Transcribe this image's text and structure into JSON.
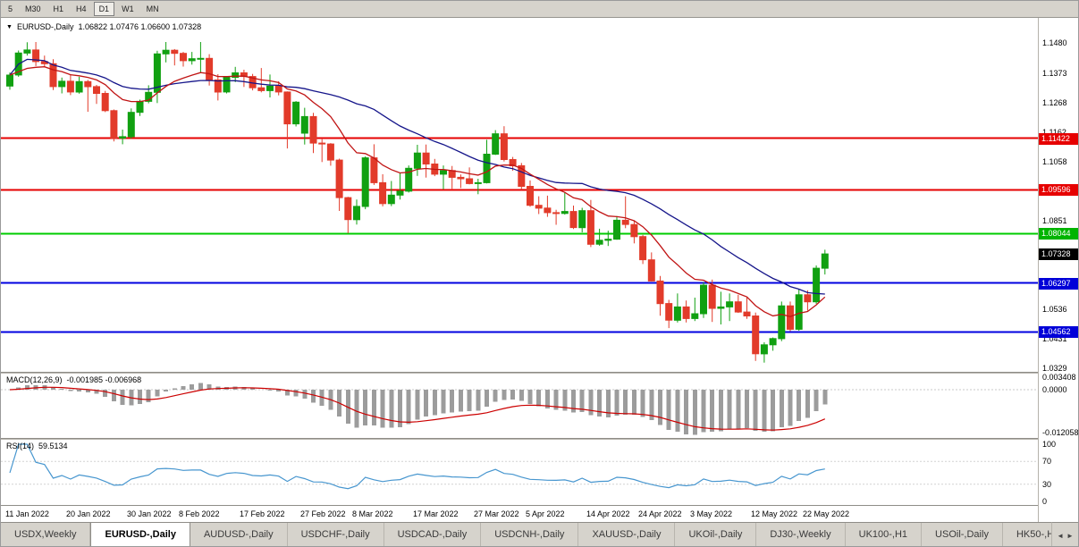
{
  "theme": {
    "up_color": "#11a011",
    "down_color": "#e23b2a",
    "ma_fast_color": "#c01414",
    "ma_slow_color": "#15158a",
    "macd_hist_color": "#9c9c9c",
    "macd_signal_color": "#cc0000",
    "rsi_color": "#4796cf"
  },
  "toolbar": {
    "timeframes": [
      {
        "label": "5",
        "active": false
      },
      {
        "label": "M30",
        "active": false
      },
      {
        "label": "H1",
        "active": false
      },
      {
        "label": "H4",
        "active": false
      },
      {
        "label": "D1",
        "active": true
      },
      {
        "label": "W1",
        "active": false
      },
      {
        "label": "MN",
        "active": false
      }
    ]
  },
  "chart_header": {
    "dropdown_icon": "▼",
    "symbol_title": "EURUSD-,Daily",
    "ohlc_text": "1.06822 1.07476 1.06600 1.07328"
  },
  "price_axis": {
    "labels": [
      {
        "value": 1.148,
        "text": "1.1480"
      },
      {
        "value": 1.1373,
        "text": "1.1373"
      },
      {
        "value": 1.1268,
        "text": "1.1268"
      },
      {
        "value": 1.1162,
        "text": "1.1162"
      },
      {
        "value": 1.1058,
        "text": "1.1058"
      },
      {
        "value": 1.0851,
        "text": "1.0851"
      },
      {
        "value": 1.0536,
        "text": "1.0536"
      },
      {
        "value": 1.0431,
        "text": "1.0431"
      },
      {
        "value": 1.0329,
        "text": "1.0329"
      }
    ],
    "badges": [
      {
        "value": 1.11422,
        "text": "1.11422",
        "bg": "#e60000"
      },
      {
        "value": 1.09596,
        "text": "1.09596",
        "bg": "#e60000"
      },
      {
        "value": 1.08044,
        "text": "1.08044",
        "bg": "#00b400"
      },
      {
        "value": 1.07328,
        "text": "1.07328",
        "bg": "#000000"
      },
      {
        "value": 1.06297,
        "text": "1.06297",
        "bg": "#0000d8"
      },
      {
        "value": 1.04562,
        "text": "1.04562",
        "bg": "#0000d8"
      }
    ]
  },
  "hlines": [
    {
      "value": 1.11422,
      "color": "#e60000"
    },
    {
      "value": 1.09596,
      "color": "#e60000"
    },
    {
      "value": 1.08044,
      "color": "#00cc00"
    },
    {
      "value": 1.06297,
      "color": "#0000e0"
    },
    {
      "value": 1.04562,
      "color": "#0000e0"
    }
  ],
  "macd_panel": {
    "name": "MACD(12,26,9)",
    "values": "-0.001985 -0.006968",
    "axis": [
      {
        "text": "0.003408",
        "value": 0.003408
      },
      {
        "text": "0.0000",
        "value": 0
      },
      {
        "text": "-0.012058",
        "value": -0.012058
      }
    ]
  },
  "rsi_panel": {
    "name": "RSI(14)",
    "value": "59.5134",
    "axis": [
      {
        "text": "100",
        "value": 100
      },
      {
        "text": "70",
        "value": 70
      },
      {
        "text": "30",
        "value": 30
      },
      {
        "text": "0",
        "value": 0
      }
    ]
  },
  "date_axis": [
    {
      "text": "11 Jan 2022",
      "i": 0
    },
    {
      "text": "20 Jan 2022",
      "i": 7
    },
    {
      "text": "30 Jan 2022",
      "i": 14
    },
    {
      "text": "8 Feb 2022",
      "i": 20
    },
    {
      "text": "17 Feb 2022",
      "i": 27
    },
    {
      "text": "27 Feb 2022",
      "i": 34
    },
    {
      "text": "8 Mar 2022",
      "i": 40
    },
    {
      "text": "17 Mar 2022",
      "i": 47
    },
    {
      "text": "27 Mar 2022",
      "i": 54
    },
    {
      "text": "5 Apr 2022",
      "i": 60
    },
    {
      "text": "14 Apr 2022",
      "i": 67
    },
    {
      "text": "24 Apr 2022",
      "i": 73
    },
    {
      "text": "3 May 2022",
      "i": 79
    },
    {
      "text": "12 May 2022",
      "i": 86
    },
    {
      "text": "22 May 2022",
      "i": 92
    }
  ],
  "tabs": [
    {
      "label": "USDX,Weekly",
      "active": false
    },
    {
      "label": "EURUSD-,Daily",
      "active": true
    },
    {
      "label": "AUDUSD-,Daily",
      "active": false
    },
    {
      "label": "USDCHF-,Daily",
      "active": false
    },
    {
      "label": "USDCAD-,Daily",
      "active": false
    },
    {
      "label": "USDCNH-,Daily",
      "active": false
    },
    {
      "label": "XAUUSD-,Daily",
      "active": false
    },
    {
      "label": "UKOil-,Daily",
      "active": false
    },
    {
      "label": "DJ30-,Weekly",
      "active": false
    },
    {
      "label": "UK100-,H1",
      "active": false
    },
    {
      "label": "USOil-,Daily",
      "active": false
    },
    {
      "label": "HK50-,H1",
      "active": false
    }
  ],
  "tab_scroll": {
    "left": "◄",
    "right": "►"
  },
  "chart_data": {
    "type": "candlestick",
    "symbol": "EURUSD-",
    "timeframe": "Daily",
    "last_ohlc": {
      "open": 1.06822,
      "high": 1.07476,
      "low": 1.066,
      "close": 1.07328
    },
    "price_axis_range": [
      1.0329,
      1.148
    ],
    "horizontal_levels": [
      1.11422,
      1.09596,
      1.08044,
      1.06297,
      1.04562
    ],
    "current_price": 1.07328,
    "overlays": [
      {
        "name": "ma-fast",
        "type": "ema",
        "period": 12
      },
      {
        "name": "ma-slow",
        "type": "sma",
        "period": 26
      }
    ],
    "indicators": [
      {
        "name": "MACD",
        "params": [
          12,
          26,
          9
        ],
        "last_values": [
          -0.001985,
          -0.006968
        ],
        "axis_range": [
          -0.012058,
          0.003408
        ]
      },
      {
        "name": "RSI",
        "params": [
          14
        ],
        "last_value": 59.5134,
        "axis_range": [
          0,
          100
        ],
        "levels": [
          70,
          30
        ]
      }
    ],
    "candles": [
      [
        1.1327,
        1.1375,
        1.1314,
        1.1366
      ],
      [
        1.1366,
        1.1453,
        1.136,
        1.1444
      ],
      [
        1.1444,
        1.1482,
        1.1435,
        1.1455
      ],
      [
        1.1455,
        1.1483,
        1.1398,
        1.1414
      ],
      [
        1.1414,
        1.1435,
        1.1395,
        1.1406
      ],
      [
        1.1406,
        1.1422,
        1.1313,
        1.1325
      ],
      [
        1.1325,
        1.1357,
        1.1301,
        1.1344
      ],
      [
        1.1344,
        1.1369,
        1.1295,
        1.1306
      ],
      [
        1.1306,
        1.136,
        1.13,
        1.1343
      ],
      [
        1.1343,
        1.1349,
        1.1236,
        1.1325
      ],
      [
        1.1325,
        1.1331,
        1.1264,
        1.1301
      ],
      [
        1.1301,
        1.131,
        1.1235,
        1.124
      ],
      [
        1.124,
        1.1244,
        1.1131,
        1.1143
      ],
      [
        1.1143,
        1.1173,
        1.1121,
        1.1148
      ],
      [
        1.1148,
        1.1248,
        1.1141,
        1.1234
      ],
      [
        1.1234,
        1.1279,
        1.1221,
        1.1273
      ],
      [
        1.1273,
        1.133,
        1.1266,
        1.1305
      ],
      [
        1.1305,
        1.1452,
        1.1267,
        1.1441
      ],
      [
        1.1441,
        1.1483,
        1.1411,
        1.1454
      ],
      [
        1.1454,
        1.1458,
        1.14,
        1.1443
      ],
      [
        1.1443,
        1.1448,
        1.1396,
        1.1417
      ],
      [
        1.1417,
        1.1448,
        1.1403,
        1.1424
      ],
      [
        1.1424,
        1.1483,
        1.1374,
        1.1425
      ],
      [
        1.1425,
        1.144,
        1.1329,
        1.1349
      ],
      [
        1.1349,
        1.1369,
        1.1276,
        1.1306
      ],
      [
        1.1306,
        1.1359,
        1.1301,
        1.1358
      ],
      [
        1.1358,
        1.1395,
        1.1341,
        1.1374
      ],
      [
        1.1374,
        1.1385,
        1.1324,
        1.1361
      ],
      [
        1.1361,
        1.137,
        1.1312,
        1.1321
      ],
      [
        1.1321,
        1.1391,
        1.1305,
        1.1311
      ],
      [
        1.1311,
        1.1368,
        1.1287,
        1.1327
      ],
      [
        1.1327,
        1.1344,
        1.1294,
        1.1306
      ],
      [
        1.1306,
        1.1308,
        1.1106,
        1.1193
      ],
      [
        1.1193,
        1.1274,
        1.1184,
        1.127
      ],
      [
        1.116,
        1.125,
        1.112,
        1.1219
      ],
      [
        1.1219,
        1.1232,
        1.109,
        1.1125
      ],
      [
        1.1125,
        1.1139,
        1.1058,
        1.1122
      ],
      [
        1.1122,
        1.1125,
        1.1045,
        1.1065
      ],
      [
        1.1065,
        1.107,
        1.0885,
        1.0932
      ],
      [
        1.0932,
        1.0935,
        1.0806,
        1.0854
      ],
      [
        1.0854,
        1.0925,
        1.0837,
        1.0901
      ],
      [
        1.0901,
        1.1078,
        1.0891,
        1.1073
      ],
      [
        1.1073,
        1.1121,
        1.0977,
        1.0985
      ],
      [
        1.0985,
        1.1015,
        1.0901,
        1.0911
      ],
      [
        1.0911,
        1.0991,
        1.0902,
        1.0941
      ],
      [
        1.0941,
        1.102,
        1.0925,
        1.0955
      ],
      [
        1.0955,
        1.1046,
        1.095,
        1.1036
      ],
      [
        1.1036,
        1.1119,
        1.1009,
        1.109
      ],
      [
        1.109,
        1.112,
        1.1003,
        1.1051
      ],
      [
        1.1051,
        1.1069,
        1.1008,
        1.1015
      ],
      [
        1.1015,
        1.1046,
        1.0962,
        1.1028
      ],
      [
        1.1028,
        1.1044,
        1.0963,
        1.1004
      ],
      [
        1.1004,
        1.1014,
        1.0966,
        1.0999
      ],
      [
        1.0999,
        1.1039,
        1.0979,
        1.0982
      ],
      [
        1.0982,
        1.0999,
        1.0944,
        1.0985
      ],
      [
        1.0985,
        1.1137,
        1.0982,
        1.1086
      ],
      [
        1.1086,
        1.1171,
        1.1083,
        1.1158
      ],
      [
        1.1158,
        1.1185,
        1.106,
        1.1067
      ],
      [
        1.1067,
        1.1076,
        1.1027,
        1.1045
      ],
      [
        1.1045,
        1.1055,
        1.096,
        1.0972
      ],
      [
        1.0972,
        1.0993,
        1.09,
        1.0905
      ],
      [
        1.0905,
        1.0937,
        1.0874,
        1.0895
      ],
      [
        1.0895,
        1.0939,
        1.0864,
        1.0879
      ],
      [
        1.0879,
        1.0889,
        1.0836,
        1.0876
      ],
      [
        1.0876,
        1.095,
        1.0872,
        1.0883
      ],
      [
        1.0883,
        1.0904,
        1.0821,
        1.0826
      ],
      [
        1.0826,
        1.0896,
        1.0809,
        1.0886
      ],
      [
        1.0886,
        1.0924,
        1.0757,
        1.0767
      ],
      [
        1.0767,
        1.0822,
        1.0762,
        1.0781
      ],
      [
        1.0781,
        1.0815,
        1.0761,
        1.0785
      ],
      [
        1.0785,
        1.0867,
        1.0783,
        1.0852
      ],
      [
        1.0852,
        1.0937,
        1.0824,
        1.0837
      ],
      [
        1.0837,
        1.0852,
        1.077,
        1.0794
      ],
      [
        1.0794,
        1.08,
        1.0697,
        1.0712
      ],
      [
        1.0712,
        1.0738,
        1.0635,
        1.0637
      ],
      [
        1.0637,
        1.0655,
        1.0514,
        1.0557
      ],
      [
        1.0557,
        1.057,
        1.047,
        1.0498
      ],
      [
        1.0498,
        1.0593,
        1.049,
        1.0545
      ],
      [
        1.0545,
        1.0568,
        1.049,
        1.0504
      ],
      [
        1.0504,
        1.0578,
        1.0495,
        1.0521
      ],
      [
        1.0521,
        1.0632,
        1.0506,
        1.0622
      ],
      [
        1.0622,
        1.0642,
        1.0492,
        1.054
      ],
      [
        1.054,
        1.0599,
        1.0483,
        1.0545
      ],
      [
        1.0545,
        1.0593,
        1.0495,
        1.0563
      ],
      [
        1.0563,
        1.0588,
        1.0524,
        1.0527
      ],
      [
        1.0527,
        1.0578,
        1.0503,
        1.0513
      ],
      [
        1.0513,
        1.0525,
        1.0354,
        1.0379
      ],
      [
        1.0379,
        1.042,
        1.0348,
        1.0411
      ],
      [
        1.0411,
        1.0437,
        1.039,
        1.0433
      ],
      [
        1.0433,
        1.0564,
        1.0424,
        1.0549
      ],
      [
        1.0549,
        1.0564,
        1.0459,
        1.0466
      ],
      [
        1.0466,
        1.0607,
        1.0461,
        1.0588
      ],
      [
        1.0588,
        1.0604,
        1.0532,
        1.0563
      ],
      [
        1.0563,
        1.0692,
        1.0556,
        1.0682
      ],
      [
        1.06822,
        1.07476,
        1.066,
        1.07328
      ]
    ]
  }
}
